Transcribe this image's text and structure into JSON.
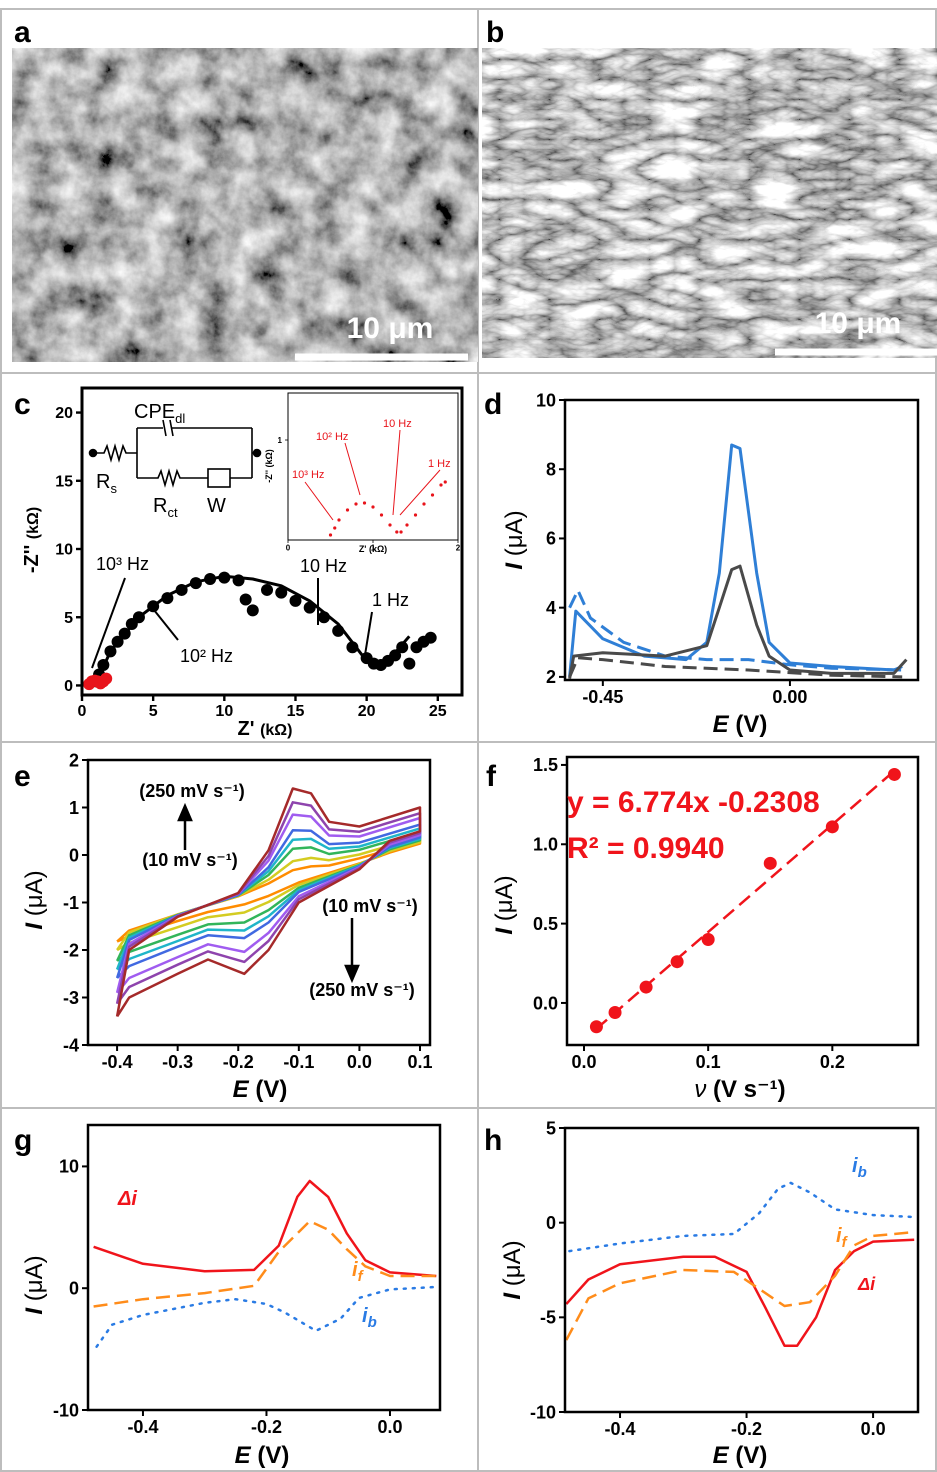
{
  "panel_labels": [
    "a",
    "b",
    "c",
    "d",
    "e",
    "f",
    "g",
    "h"
  ],
  "images": [
    {
      "scale_bar": "10 μm"
    },
    {
      "scale_bar": "10 μm"
    }
  ],
  "chart_data": [
    {
      "type": "scatter",
      "x_label": [
        "Z'",
        "(kΩ)"
      ],
      "y_label": [
        "-Z''",
        "(kΩ)"
      ],
      "xlim": [
        0,
        26.7
      ],
      "ylim": [
        -0.7,
        21.8
      ],
      "xticks": [
        0,
        5,
        10,
        15,
        20,
        25
      ],
      "yticks": [
        0,
        5,
        10,
        15,
        20
      ],
      "annotations": [
        "10³ Hz",
        "10² Hz",
        "10 Hz",
        "1 Hz"
      ],
      "circuit": [
        {
          "text": "CPE",
          "sub": "dl"
        },
        {
          "text": "R",
          "sub": "s"
        },
        {
          "text": "R",
          "sub": "ct"
        },
        {
          "text": "W"
        }
      ],
      "series": [
        {
          "color": "#000000",
          "x": [
            1,
            1.2,
            1.5,
            2,
            2.5,
            3,
            3.5,
            4,
            5,
            6,
            7,
            8,
            9,
            10,
            11,
            11.5,
            12,
            13,
            14,
            15,
            16,
            17,
            18,
            19,
            20,
            20.5,
            21,
            21.5,
            22,
            22.5,
            23,
            23.5,
            24,
            24.5
          ],
          "values": [
            0.3,
            0.8,
            1.5,
            2.5,
            3.2,
            3.8,
            4.5,
            5,
            5.8,
            6.4,
            7,
            7.5,
            7.8,
            7.9,
            7.7,
            6.3,
            5.5,
            7,
            6.8,
            6.2,
            5.7,
            5,
            4,
            2.8,
            2,
            1.6,
            1.5,
            1.8,
            2.2,
            2.8,
            1.6,
            2.8,
            3.2,
            3.5
          ]
        },
        {
          "type": "line",
          "color": "#000000",
          "x": [
            1,
            2,
            4,
            6,
            8,
            10,
            12,
            14,
            16,
            18,
            20,
            21,
            22,
            23
          ],
          "values": [
            0.2,
            2.5,
            5,
            6.6,
            7.6,
            8,
            7.8,
            7.3,
            6.2,
            4.5,
            1.8,
            1.6,
            2.4,
            3.6
          ]
        },
        {
          "color": "#e8141b",
          "x": [
            0.5,
            0.7,
            0.9,
            1.1,
            1.3,
            1.5,
            1.7
          ],
          "values": [
            0.1,
            0.3,
            0.35,
            0.3,
            0.15,
            0.3,
            0.5
          ]
        }
      ]
    },
    {
      "type": "scatter",
      "x_label": [
        "Z'",
        "(kΩ)"
      ],
      "y_label": [
        "-Z''",
        "(kΩ)"
      ],
      "xlim": [
        0,
        2
      ],
      "ylim": [
        0,
        1.47
      ],
      "xticks": [
        0,
        1,
        2
      ],
      "yticks": [
        1
      ],
      "annotations": [
        "10³ Hz",
        "10² Hz",
        "10 Hz",
        "1 Hz"
      ],
      "series": [
        {
          "color": "#e8141b",
          "x": [
            0.5,
            0.55,
            0.6,
            0.7,
            0.8,
            0.9,
            1.0,
            1.1,
            1.2,
            1.28,
            1.33,
            1.4,
            1.5,
            1.6,
            1.7,
            1.8,
            1.85
          ],
          "values": [
            0.05,
            0.12,
            0.2,
            0.3,
            0.36,
            0.37,
            0.33,
            0.25,
            0.15,
            0.08,
            0.08,
            0.15,
            0.25,
            0.36,
            0.45,
            0.55,
            0.58
          ]
        }
      ]
    },
    {
      "type": "line",
      "x_label": [
        "E",
        "(V)"
      ],
      "y_label": [
        "I",
        "(μA)"
      ],
      "xlim": [
        -0.541,
        0.308
      ],
      "ylim": [
        1.91,
        10
      ],
      "xticks": [
        -0.45,
        {
          "value": 0,
          "label": "0.00"
        }
      ],
      "yticks": [
        2,
        4,
        6,
        8,
        10
      ],
      "series": [
        {
          "color": "#2f7fd6",
          "dash": "solid",
          "x": [
            -0.53,
            -0.515,
            -0.45,
            -0.35,
            -0.25,
            -0.2,
            -0.17,
            -0.14,
            -0.12,
            -0.08,
            -0.05,
            0,
            0.1,
            0.25,
            0.27
          ],
          "values": [
            2,
            3.9,
            3.1,
            2.6,
            2.5,
            3,
            5,
            8.7,
            8.6,
            5,
            3,
            2.4,
            2.3,
            2.2,
            2.3
          ]
        },
        {
          "color": "#2f7fd6",
          "dash": "dashed",
          "x": [
            -0.53,
            -0.51,
            -0.48,
            -0.4,
            -0.3,
            -0.2,
            -0.1,
            0,
            0.1,
            0.27
          ],
          "values": [
            4.0,
            4.5,
            3.7,
            3.0,
            2.6,
            2.5,
            2.5,
            2.35,
            2.25,
            2.2
          ]
        },
        {
          "color": "#4a4a4a",
          "dash": "solid",
          "x": [
            -0.53,
            -0.52,
            -0.45,
            -0.3,
            -0.2,
            -0.17,
            -0.14,
            -0.12,
            -0.08,
            -0.05,
            0,
            0.1,
            0.25,
            0.28
          ],
          "values": [
            1.95,
            2.6,
            2.7,
            2.6,
            2.9,
            4,
            5.1,
            5.2,
            3.5,
            2.6,
            2.2,
            2.1,
            2.1,
            2.5
          ]
        },
        {
          "color": "#4a4a4a",
          "dash": "dashed",
          "x": [
            -0.53,
            -0.51,
            -0.45,
            -0.3,
            -0.1,
            0.1,
            0.27
          ],
          "values": [
            2.0,
            2.55,
            2.5,
            2.3,
            2.2,
            2.05,
            2.0
          ]
        }
      ]
    },
    {
      "type": "line",
      "x_label": [
        "E",
        "(V)"
      ],
      "y_label": [
        "I",
        "(μA)"
      ],
      "xlim": [
        -0.448,
        0.1165
      ],
      "ylim": [
        -4,
        2
      ],
      "xticks": [
        -0.4,
        -0.3,
        -0.2,
        -0.1,
        {
          "value": 0,
          "label": "0.0"
        },
        0.1
      ],
      "yticks": [
        -4,
        -3,
        -2,
        -1,
        0,
        1,
        2
      ],
      "annotations": [
        "(250 mV s⁻¹)",
        "(10 mV s⁻¹)",
        "(10 mV s⁻¹)",
        "(250 mV s⁻¹)"
      ],
      "x": [
        -0.4,
        -0.38,
        -0.3,
        -0.2,
        -0.15,
        -0.11,
        -0.08,
        -0.05,
        0,
        0.1,
        0.1,
        0.05,
        0,
        -0.1,
        -0.15,
        -0.19,
        -0.25,
        -0.3,
        -0.38,
        -0.4
      ],
      "series": [
        {
          "color": "#ff8c00",
          "values": [
            -1.82,
            -1.59,
            -1.25,
            -0.87,
            -0.6,
            -0.32,
            -0.24,
            -0.22,
            -0.07,
            0.3,
            0.24,
            0.05,
            -0.18,
            -0.58,
            -0.86,
            -1.04,
            -1.2,
            -1.39,
            -1.71,
            -1.82
          ]
        },
        {
          "color": "#d4cc22",
          "values": [
            -2.0,
            -1.63,
            -1.25,
            -0.86,
            -0.52,
            -0.13,
            -0.06,
            -0.11,
            0.01,
            0.38,
            0.27,
            0.08,
            -0.19,
            -0.63,
            -0.99,
            -1.21,
            -1.31,
            -1.52,
            -1.85,
            -2.0
          ]
        },
        {
          "color": "#32b55a",
          "values": [
            -2.23,
            -1.69,
            -1.26,
            -0.85,
            -0.42,
            0.13,
            0.16,
            0.02,
            0.11,
            0.48,
            0.31,
            0.12,
            -0.21,
            -0.69,
            -1.16,
            -1.42,
            -1.46,
            -1.68,
            -2.04,
            -2.23
          ]
        },
        {
          "color": "#1fb5c9",
          "values": [
            -2.41,
            -1.74,
            -1.27,
            -0.84,
            -0.34,
            0.32,
            0.34,
            0.13,
            0.18,
            0.56,
            0.34,
            0.15,
            -0.22,
            -0.74,
            -1.29,
            -1.59,
            -1.57,
            -1.81,
            -2.19,
            -2.41
          ]
        },
        {
          "color": "#4169e1",
          "values": [
            -2.59,
            -1.79,
            -1.27,
            -0.84,
            -0.26,
            0.52,
            0.51,
            0.23,
            0.26,
            0.64,
            0.37,
            0.17,
            -0.24,
            -0.78,
            -1.42,
            -1.75,
            -1.69,
            -1.93,
            -2.34,
            -2.59
          ]
        },
        {
          "color": "#a05cf0",
          "values": [
            -2.9,
            -1.87,
            -1.28,
            -0.82,
            -0.12,
            0.85,
            0.81,
            0.41,
            0.39,
            0.78,
            0.42,
            0.22,
            -0.26,
            -0.87,
            -1.64,
            -2.04,
            -1.88,
            -2.15,
            -2.59,
            -2.9
          ]
        },
        {
          "color": "#8e44ad",
          "values": [
            -3.13,
            -1.93,
            -1.29,
            -0.81,
            -0.02,
            1.11,
            1.04,
            0.54,
            0.49,
            0.88,
            0.46,
            0.26,
            -0.28,
            -0.93,
            -1.81,
            -2.25,
            -2.03,
            -2.31,
            -2.78,
            -3.13
          ]
        },
        {
          "color": "#a52a2a",
          "values": [
            -3.4,
            -2.0,
            -1.3,
            -0.8,
            0.1,
            1.4,
            1.3,
            0.7,
            0.6,
            1.0,
            0.5,
            0.3,
            -0.3,
            -1.0,
            -2.0,
            -2.5,
            -2.2,
            -2.5,
            -3.0,
            -3.4
          ]
        }
      ]
    },
    {
      "type": "scatter",
      "x_label": [
        "ν",
        "(V s⁻¹)"
      ],
      "y_label": [
        "I",
        "(μA)"
      ],
      "xlim": [
        -0.0137,
        0.269
      ],
      "ylim": [
        -0.265,
        1.55
      ],
      "xticks": [
        {
          "value": 0,
          "label": "0.0"
        },
        0.1,
        0.2
      ],
      "yticks": [
        {
          "value": 0,
          "label": "0.0"
        },
        0.5,
        {
          "value": 1,
          "label": "1.0"
        },
        1.5
      ],
      "annotations": [
        "y = 6.774x -0.2308",
        "R² = 0.9940"
      ],
      "series": [
        {
          "color": "#f0141b",
          "x": [
            0.01,
            0.025,
            0.05,
            0.075,
            0.1,
            0.15,
            0.2,
            0.25
          ],
          "values": [
            -0.15,
            -0.06,
            0.1,
            0.26,
            0.4,
            0.88,
            1.11,
            1.44
          ]
        },
        {
          "type": "line",
          "dash": "dashed",
          "color": "#f0141b",
          "x": [
            0.01,
            0.25
          ],
          "values": [
            -0.163,
            1.463
          ]
        }
      ]
    },
    {
      "type": "line",
      "x_label": [
        "E",
        "(V)"
      ],
      "y_label": [
        "I",
        "(μA)"
      ],
      "xlim": [
        -0.489,
        0.081
      ],
      "ylim": [
        -10,
        13.4
      ],
      "xticks": [
        -0.4,
        -0.2,
        {
          "value": 0,
          "label": "0.0"
        }
      ],
      "yticks": [
        -10,
        0,
        10
      ],
      "annotations": [
        {
          "text": "Δi"
        },
        {
          "text": "i",
          "sub": "f"
        },
        {
          "text": "i",
          "sub": "b"
        }
      ],
      "series": [
        {
          "color": "#f0141b",
          "dash": "solid",
          "x": [
            -0.48,
            -0.4,
            -0.3,
            -0.22,
            -0.18,
            -0.15,
            -0.13,
            -0.1,
            -0.07,
            -0.04,
            0,
            0.075
          ],
          "values": [
            3.4,
            2.0,
            1.4,
            1.5,
            3.5,
            7.5,
            8.8,
            7.5,
            4.5,
            2.3,
            1.3,
            1.0
          ]
        },
        {
          "color": "#ff8c1a",
          "dash": "dashed",
          "x": [
            -0.48,
            -0.4,
            -0.3,
            -0.22,
            -0.18,
            -0.13,
            -0.1,
            -0.07,
            -0.04,
            0,
            0.075
          ],
          "values": [
            -1.5,
            -0.9,
            -0.4,
            0.2,
            3,
            5.5,
            4.8,
            3.2,
            1.8,
            1.0,
            1.0
          ]
        },
        {
          "color": "#2a7be4",
          "dash": "dotted",
          "x": [
            -0.475,
            -0.45,
            -0.4,
            -0.3,
            -0.25,
            -0.2,
            -0.17,
            -0.12,
            -0.08,
            -0.05,
            0,
            0.075
          ],
          "values": [
            -4.8,
            -3,
            -2.2,
            -1.2,
            -0.9,
            -1.3,
            -2,
            -3.5,
            -2.5,
            -0.8,
            -0.1,
            0.1
          ]
        }
      ]
    },
    {
      "type": "line",
      "x_label": [
        "E",
        "(V)"
      ],
      "y_label": [
        "I",
        "(μA)"
      ],
      "xlim": [
        -0.487,
        0.071
      ],
      "ylim": [
        -10,
        5
      ],
      "xticks": [
        -0.4,
        -0.2,
        {
          "value": 0,
          "label": "0.0"
        }
      ],
      "yticks": [
        -10,
        -5,
        0,
        5
      ],
      "annotations": [
        {
          "text": "i",
          "sub": "b"
        },
        {
          "text": "i",
          "sub": "f"
        },
        {
          "text": "Δi"
        }
      ],
      "series": [
        {
          "color": "#f0141b",
          "dash": "solid",
          "x": [
            -0.485,
            -0.45,
            -0.4,
            -0.3,
            -0.25,
            -0.2,
            -0.17,
            -0.14,
            -0.12,
            -0.09,
            -0.06,
            -0.03,
            0,
            0.065
          ],
          "values": [
            -4.3,
            -3,
            -2.2,
            -1.8,
            -1.8,
            -2.6,
            -4.5,
            -6.5,
            -6.5,
            -5,
            -2.5,
            -1.5,
            -1.0,
            -0.9
          ]
        },
        {
          "color": "#ff8c1a",
          "dash": "dashed",
          "x": [
            -0.485,
            -0.45,
            -0.4,
            -0.3,
            -0.22,
            -0.18,
            -0.14,
            -0.1,
            -0.06,
            -0.03,
            0,
            0.065
          ],
          "values": [
            -6.2,
            -4,
            -3.2,
            -2.5,
            -2.6,
            -3.5,
            -4.4,
            -4.2,
            -2.8,
            -1.2,
            -0.7,
            -0.5
          ]
        },
        {
          "color": "#2a7be4",
          "dash": "dotted",
          "x": [
            -0.48,
            -0.4,
            -0.3,
            -0.22,
            -0.18,
            -0.15,
            -0.13,
            -0.1,
            -0.06,
            0,
            0.065
          ],
          "values": [
            -1.5,
            -1.1,
            -0.7,
            -0.6,
            0.5,
            1.8,
            2.1,
            1.6,
            0.7,
            0.4,
            0.3
          ]
        }
      ]
    }
  ]
}
